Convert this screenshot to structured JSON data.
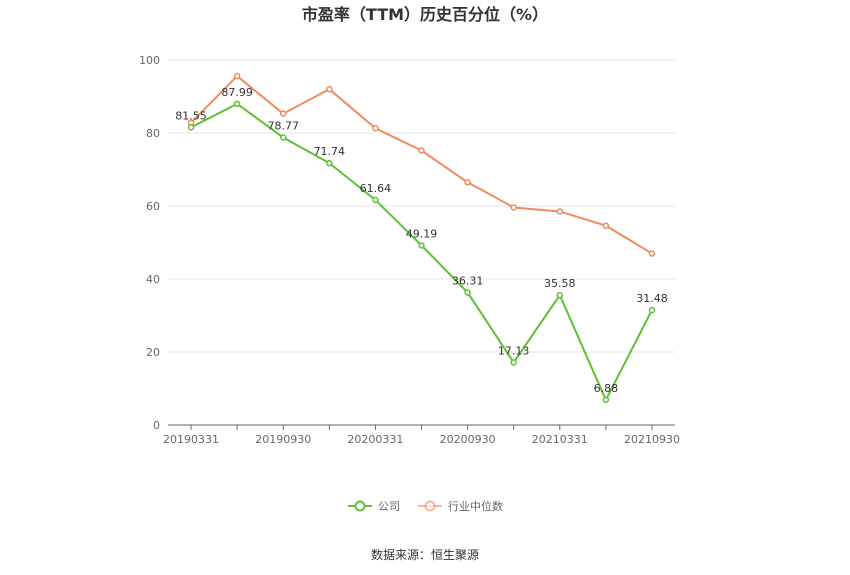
{
  "chart_data": {
    "type": "line",
    "title": "市盈率（TTM）历史百分位（%）",
    "xlabel": "",
    "ylabel": "",
    "ylim": [
      0,
      100
    ],
    "y_ticks": [
      "0",
      "20",
      "40",
      "60",
      "80",
      "100"
    ],
    "x": [
      "20190331",
      "20190630",
      "20190930",
      "20191231",
      "20200331",
      "20200630",
      "20200930",
      "20201231",
      "20210331",
      "20210630",
      "20210930"
    ],
    "x_tick_labels": [
      "20190331",
      "20190930",
      "20200331",
      "20200930",
      "20210331",
      "20210930"
    ],
    "grid": true,
    "legend_position": "bottom-center",
    "series": [
      {
        "name": "公司",
        "color": "#5dc132",
        "values": [
          81.55,
          87.99,
          78.77,
          71.74,
          61.64,
          49.19,
          36.31,
          17.13,
          35.58,
          6.88,
          31.48
        ],
        "labels": [
          "81.55",
          "87.99",
          "78.77",
          "71.74",
          "61.64",
          "49.19",
          "36.31",
          "17.13",
          "35.58",
          "6.88",
          "31.48"
        ]
      },
      {
        "name": "行业中位数",
        "color": "#f08a5d",
        "values": [
          82.8,
          95.6,
          85.3,
          92.0,
          81.3,
          75.2,
          66.5,
          59.6,
          58.5,
          54.6,
          47.0
        ]
      }
    ]
  },
  "source": "数据来源：恒生聚源"
}
